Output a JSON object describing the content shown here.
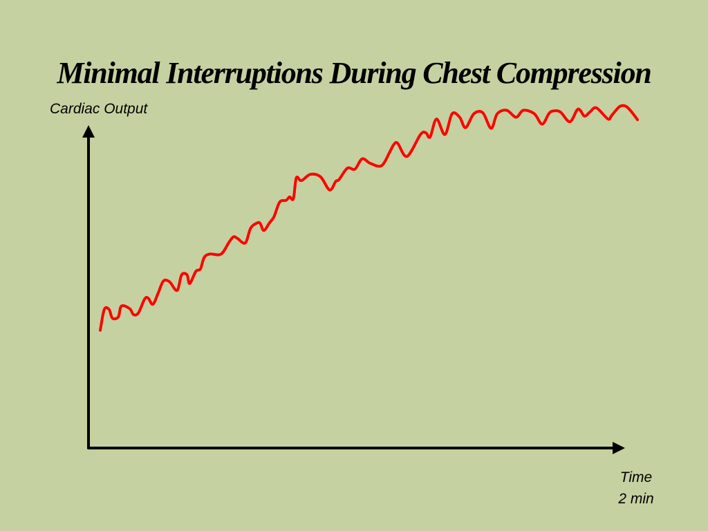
{
  "slide": {
    "title": "Minimal Interruptions During Chest Compression",
    "background_color": "#c5d1a0"
  },
  "chart_data": {
    "type": "line",
    "title": "Minimal Interruptions During Chest Compression",
    "ylabel": "Cardiac Output",
    "xlabel": "Time",
    "x_tick_labels": [
      "2 min"
    ],
    "grid": false,
    "legend": "none",
    "xlim": [
      0,
      2
    ],
    "ylim": [
      0,
      1
    ],
    "series": [
      {
        "color": "#ff0000",
        "x": [
          0.0,
          0.015,
          0.033,
          0.045,
          0.067,
          0.079,
          0.11,
          0.124,
          0.142,
          0.165,
          0.178,
          0.196,
          0.216,
          0.235,
          0.258,
          0.286,
          0.303,
          0.323,
          0.333,
          0.356,
          0.373,
          0.387,
          0.408,
          0.45,
          0.48,
          0.497,
          0.511,
          0.54,
          0.56,
          0.585,
          0.596,
          0.609,
          0.63,
          0.647,
          0.668,
          0.692,
          0.705,
          0.719,
          0.73,
          0.749,
          0.782,
          0.82,
          0.854,
          0.877,
          0.889,
          0.92,
          0.948,
          0.975,
          1.005,
          1.047,
          1.078,
          1.092,
          1.107,
          1.142,
          1.192,
          1.212,
          1.228,
          1.252,
          1.283,
          1.31,
          1.338,
          1.36,
          1.391,
          1.424,
          1.455,
          1.478,
          1.513,
          1.548,
          1.575,
          1.616,
          1.645,
          1.67,
          1.686,
          1.713,
          1.748,
          1.775,
          1.787,
          1.803,
          1.823,
          1.847,
          1.89,
          1.904,
          1.932,
          1.953,
          1.973,
          2.0
        ],
        "y": [
          0.34,
          0.4,
          0.4,
          0.375,
          0.378,
          0.41,
          0.402,
          0.385,
          0.39,
          0.43,
          0.433,
          0.415,
          0.448,
          0.482,
          0.48,
          0.455,
          0.5,
          0.5,
          0.475,
          0.51,
          0.517,
          0.55,
          0.56,
          0.56,
          0.595,
          0.61,
          0.605,
          0.592,
          0.635,
          0.65,
          0.648,
          0.628,
          0.65,
          0.668,
          0.71,
          0.715,
          0.725,
          0.72,
          0.78,
          0.772,
          0.79,
          0.783,
          0.745,
          0.77,
          0.775,
          0.808,
          0.805,
          0.835,
          0.822,
          0.815,
          0.855,
          0.875,
          0.88,
          0.842,
          0.905,
          0.91,
          0.898,
          0.95,
          0.905,
          0.965,
          0.955,
          0.925,
          0.965,
          0.968,
          0.923,
          0.965,
          0.975,
          0.955,
          0.975,
          0.965,
          0.935,
          0.965,
          0.973,
          0.97,
          0.942,
          0.976,
          0.975,
          0.958,
          0.97,
          0.982,
          0.95,
          0.96,
          0.985,
          0.988,
          0.975,
          0.948
        ]
      }
    ]
  }
}
